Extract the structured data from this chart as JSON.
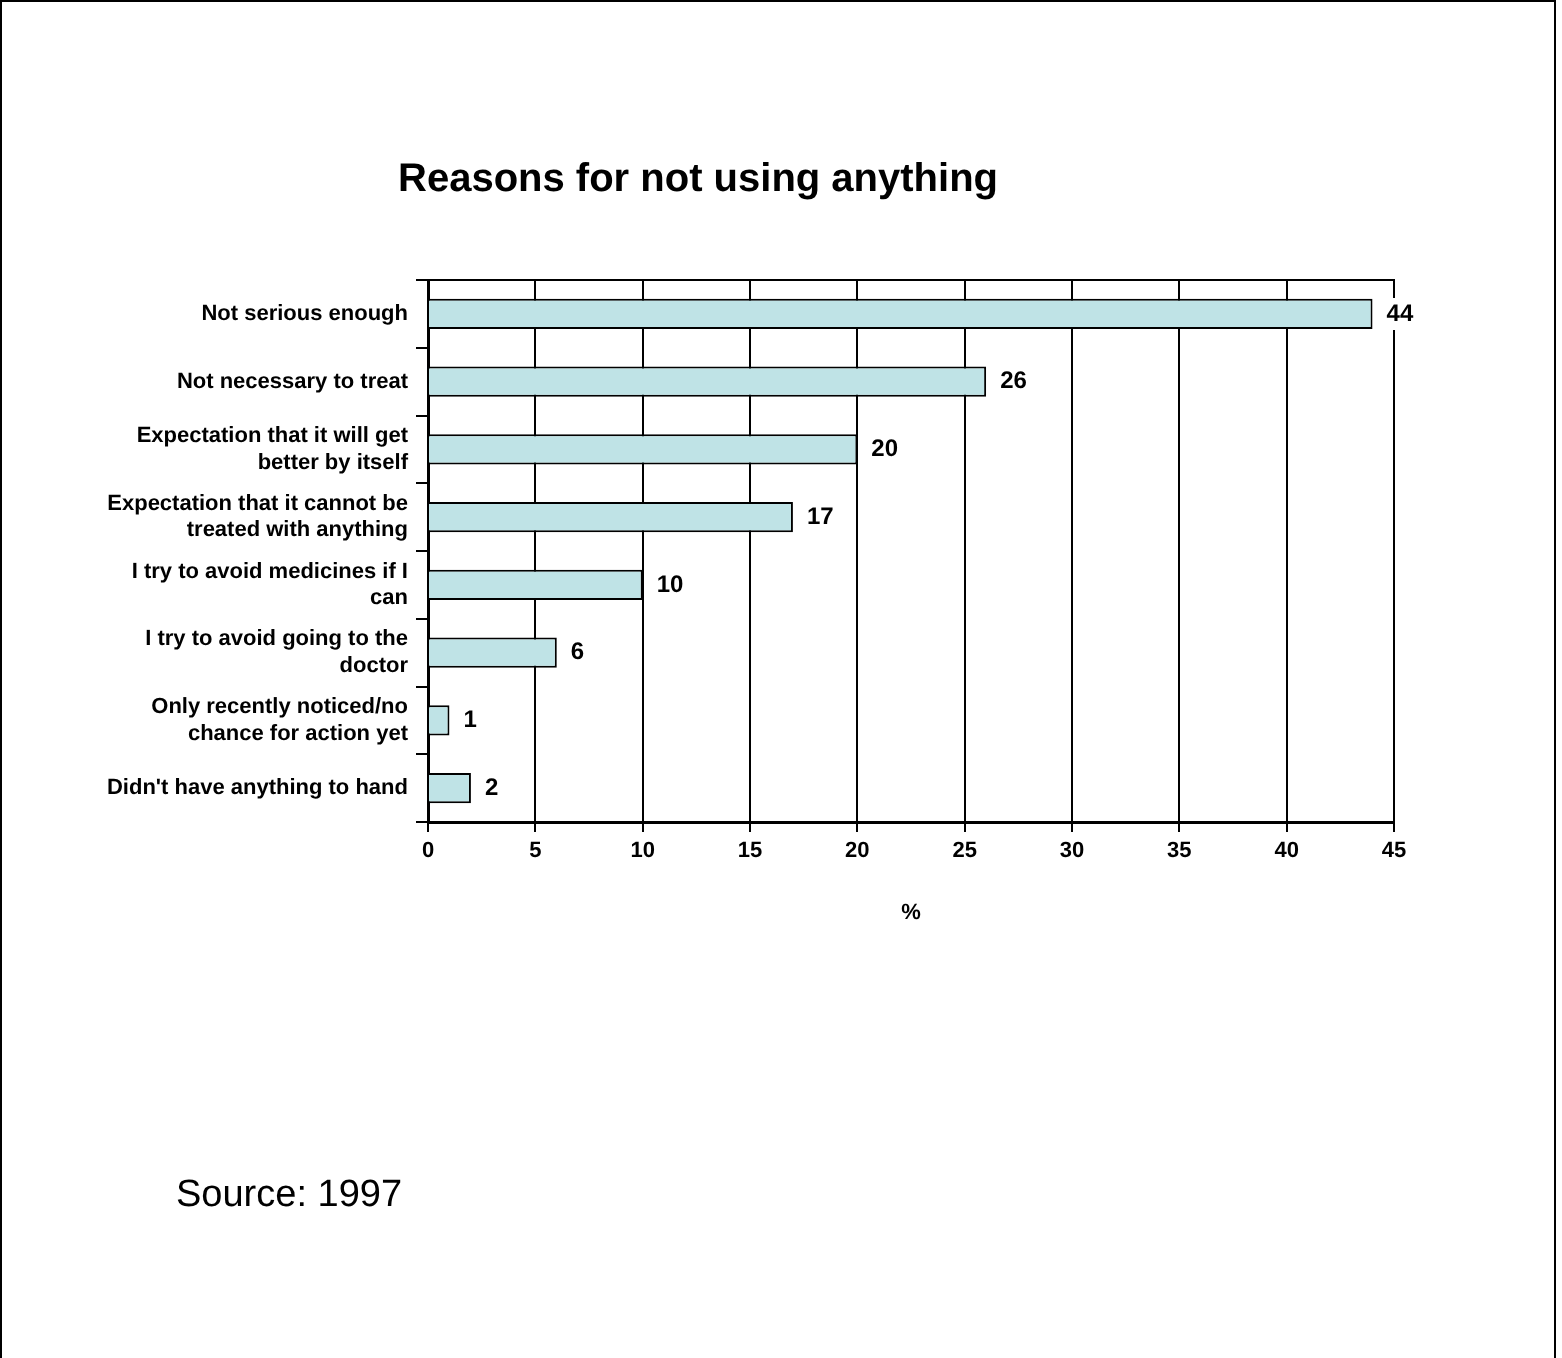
{
  "chart_data": {
    "type": "bar",
    "orientation": "horizontal",
    "title": "Reasons for not using anything",
    "categories": [
      "Not serious enough",
      "Not necessary to treat",
      "Expectation that it will get better by itself",
      "Expectation that it cannot be treated with anything",
      "I try to avoid medicines if I can",
      "I try to avoid going to the doctor",
      "Only recently noticed/no chance for action yet",
      "Didn't have anything to hand"
    ],
    "values": [
      44,
      26,
      20,
      17,
      10,
      6,
      1,
      2
    ],
    "color": "#bfe3e6",
    "xlim": [
      0,
      45
    ],
    "xticks": [
      0,
      5,
      10,
      15,
      20,
      25,
      30,
      35,
      40,
      45
    ],
    "xlabel": "%",
    "grid": "x",
    "data_labels": true,
    "annotations": [
      "Source: 1997"
    ]
  }
}
